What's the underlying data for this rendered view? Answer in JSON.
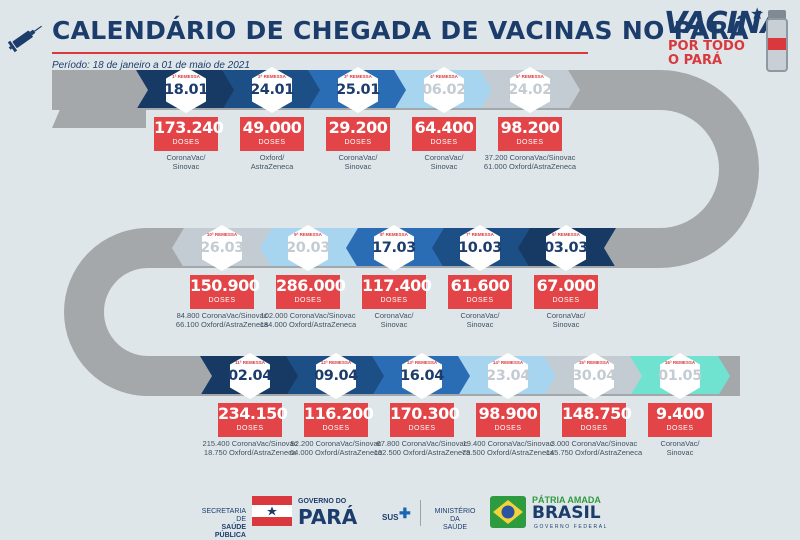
{
  "header": {
    "title": "CALENDÁRIO DE CHEGADA DE VACINAS NO PARÁ",
    "period": "Período: 18 de janeiro a 01 de maio de 2021",
    "logo_line1": "VACINA",
    "logo_line2": "POR TODO",
    "logo_line3": "O PARÁ"
  },
  "shipments": [
    {
      "remessa": "1ª REMESSA",
      "date": "18.01",
      "doses": "173.240",
      "doses_unit": "DOSES",
      "vaccine_lines": [
        "CoronaVac/",
        "Sinovac"
      ],
      "color": "#163a64"
    },
    {
      "remessa": "2ª REMESSA",
      "date": "24.01",
      "doses": "49.000",
      "doses_unit": "DOSES",
      "vaccine_lines": [
        "Oxford/",
        "AstraZeneca"
      ],
      "color": "#1b4f86"
    },
    {
      "remessa": "3ª REMESSA",
      "date": "25.01",
      "doses": "29.200",
      "doses_unit": "DOSES",
      "vaccine_lines": [
        "CoronaVac/",
        "Sinovac"
      ],
      "color": "#2a6db5"
    },
    {
      "remessa": "4ª REMESSA",
      "date": "06.02",
      "doses": "64.400",
      "doses_unit": "DOSES",
      "vaccine_lines": [
        "CoronaVac/",
        "Sinovac"
      ],
      "color": "#a7d4ef"
    },
    {
      "remessa": "5ª REMESSA",
      "date": "24.02",
      "doses": "98.200",
      "doses_unit": "DOSES",
      "vaccine_lines": [
        "37.200 CoronaVac/Sinovac",
        "61.000 Oxford/AstraZeneca"
      ],
      "color": "#c3ccd3"
    },
    {
      "remessa": "6ª REMESSA",
      "date": "03.03",
      "doses": "67.000",
      "doses_unit": "DOSES",
      "vaccine_lines": [
        "CoronaVac/",
        "Sinovac"
      ],
      "color": "#163a64"
    },
    {
      "remessa": "7ª REMESSA",
      "date": "10.03",
      "doses": "61.600",
      "doses_unit": "DOSES",
      "vaccine_lines": [
        "CoronaVac/",
        "Sinovac"
      ],
      "color": "#1b4f86"
    },
    {
      "remessa": "8ª REMESSA",
      "date": "17.03",
      "doses": "117.400",
      "doses_unit": "DOSES",
      "vaccine_lines": [
        "CoronaVac/",
        "Sinovac"
      ],
      "color": "#2a6db5"
    },
    {
      "remessa": "9ª REMESSA",
      "date": "20.03",
      "doses": "286.000",
      "doses_unit": "DOSES",
      "vaccine_lines": [
        "102.000 CoronaVac/Sinovac",
        "184.000 Oxford/AstraZeneca"
      ],
      "color": "#a7d4ef"
    },
    {
      "remessa": "10ª REMESSA",
      "date": "26.03",
      "doses": "150.900",
      "doses_unit": "DOSES",
      "vaccine_lines": [
        "84.800 CoronaVac/Sinovac",
        "66.100 Oxford/AstraZeneca"
      ],
      "color": "#c3ccd3"
    },
    {
      "remessa": "11ª REMESSA",
      "date": "02.04",
      "doses": "234.150",
      "doses_unit": "DOSES",
      "vaccine_lines": [
        "215.400 CoronaVac/Sinovac",
        "18.750 Oxford/AstraZeneca"
      ],
      "color": "#163a64"
    },
    {
      "remessa": "12ª REMESSA",
      "date": "09.04",
      "doses": "116.200",
      "doses_unit": "DOSES",
      "vaccine_lines": [
        "52.200 CoronaVac/Sinovac",
        "64.000 Oxford/AstraZeneca"
      ],
      "color": "#1b4f86"
    },
    {
      "remessa": "13ª REMESSA",
      "date": "16.04",
      "doses": "170.300",
      "doses_unit": "DOSES",
      "vaccine_lines": [
        "67.800 CoronaVac/Sinovac",
        "102.500 Oxford/AstraZeneca"
      ],
      "color": "#2a6db5"
    },
    {
      "remessa": "14ª REMESSA",
      "date": "23.04",
      "doses": "98.900",
      "doses_unit": "DOSES",
      "vaccine_lines": [
        "19.400 CoronaVac/Sinovac",
        "79.500 Oxford/AstraZeneca"
      ],
      "color": "#a7d4ef"
    },
    {
      "remessa": "15ª REMESSA",
      "date": "30.04",
      "doses": "148.750",
      "doses_unit": "DOSES",
      "vaccine_lines": [
        "3.000 CoronaVac/Sinovac",
        "145.750 Oxford/AstraZeneca"
      ],
      "color": "#c3ccd3"
    },
    {
      "remessa": "16ª REMESSA",
      "date": "01.05",
      "doses": "9.400",
      "doses_unit": "DOSES",
      "vaccine_lines": [
        "CoronaVac/",
        "Sinovac"
      ],
      "color": "#6fe3cf"
    }
  ],
  "footer": {
    "secretaria": [
      "SECRETARIA DE",
      "SAÚDE PÚBLICA"
    ],
    "governo": "GOVERNO DO",
    "para": "PARÁ",
    "sus": "SUS",
    "ministerio": [
      "MINISTÉRIO DA",
      "SAÚDE"
    ],
    "patria": "PÁTRIA AMADA",
    "brasil": "BRASIL",
    "governo_federal": "GOVERNO FEDERAL"
  }
}
